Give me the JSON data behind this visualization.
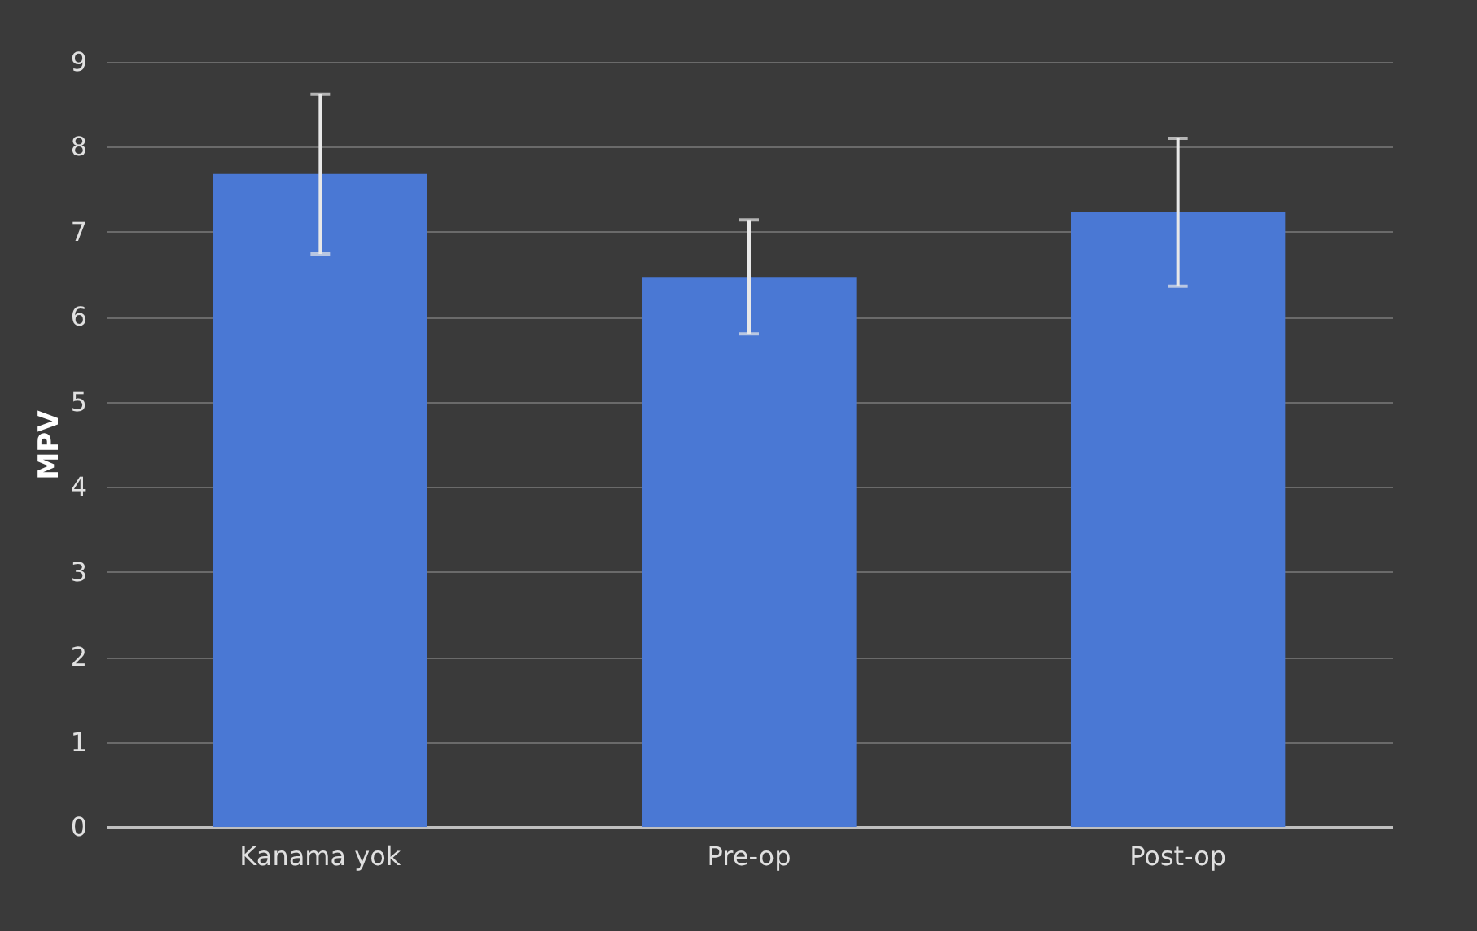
{
  "chart_data": {
    "type": "bar",
    "ylabel": "MPV",
    "categories": [
      "Kanama yok",
      "Pre-op",
      "Post-op"
    ],
    "values": [
      7.68,
      6.47,
      7.23
    ],
    "errors": [
      0.94,
      0.67,
      0.87
    ],
    "color": "#4a78d4",
    "ylim": [
      0,
      9
    ],
    "yticks": [
      0,
      1,
      2,
      3,
      4,
      5,
      6,
      7,
      8,
      9
    ],
    "grid": "y"
  }
}
